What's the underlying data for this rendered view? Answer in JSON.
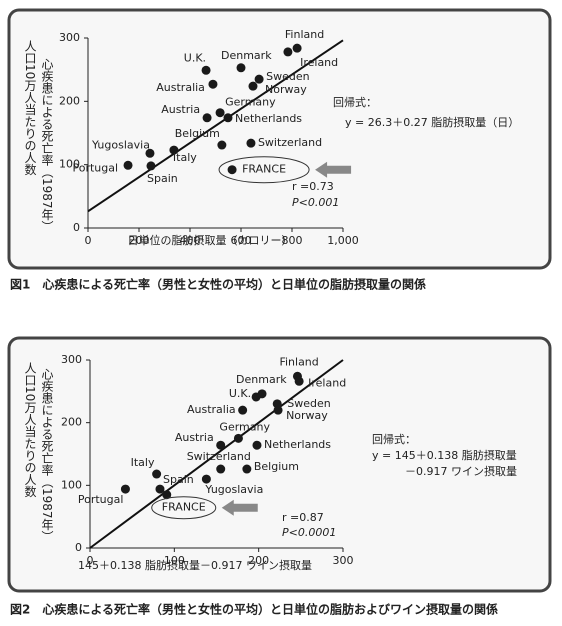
{
  "chart_data": [
    {
      "type": "scatter",
      "x": [
        784,
        820,
        600,
        463,
        490,
        671,
        647,
        518,
        467,
        549,
        525,
        639,
        243,
        337,
        157,
        247,
        565
      ],
      "values": [
        278,
        284,
        253,
        249,
        227,
        235,
        224,
        182,
        174,
        174,
        131,
        134,
        118,
        123,
        99,
        98,
        92
      ],
      "point_labels": [
        "Finland",
        "Ireland",
        "Denmark",
        "U.K.",
        "Australia",
        "Sweden",
        "Norway",
        "Germany",
        "Austria",
        "Netherlands",
        "Belgium",
        "Switzerland",
        "Yugoslavia",
        "Italy",
        "Portugal",
        "Spain",
        "FRANCE"
      ],
      "highlight_index": 16,
      "color": "#1a1a1a",
      "xlim": [
        0,
        1000
      ],
      "xticks": [
        0,
        200,
        400,
        600,
        800,
        {
          "value": 1000,
          "label": "1,000"
        }
      ],
      "ylim": [
        0,
        300
      ],
      "yticks": [
        0,
        100,
        200,
        300
      ],
      "regression": {
        "intercept": 26.3,
        "slope": 0.27
      },
      "x_label": "日単位の脂肪摂取量（カロリー）",
      "y_label": [
        "心疾患による死亡率（1987年）",
        "人口10万人当たりの人数"
      ],
      "equation": [
        "回帰式：",
        "y = 26.3＋0.27 脂肪摂取量（日）"
      ],
      "r": "r =0.73",
      "p": "P<0.001",
      "caption": "図1　心疾患による死亡率（男性と女性の平均）と日単位の脂肪摂取量の関係"
    },
    {
      "type": "scatter",
      "x": [
        246,
        248,
        204,
        197,
        181,
        222,
        223,
        176,
        155,
        198,
        186,
        155,
        138,
        79,
        42,
        83,
        91
      ],
      "values": [
        274,
        266,
        246,
        241,
        220,
        230,
        220,
        175,
        164,
        164,
        126,
        126,
        110,
        118,
        94,
        94,
        85
      ],
      "point_labels": [
        "Finland",
        "Ireland",
        "Denmark",
        "U.K.",
        "Australia",
        "Sweden",
        "Norway",
        "Germany",
        "Austria",
        "Netherlands",
        "Belgium",
        "Switzerland",
        "Yugoslavia",
        "Italy",
        "Portugal",
        "Spain",
        "FRANCE"
      ],
      "highlight_index": 16,
      "color": "#1a1a1a",
      "xlim": [
        0,
        300
      ],
      "xticks": [
        0,
        100,
        200,
        300
      ],
      "ylim": [
        0,
        300
      ],
      "yticks": [
        0,
        100,
        200,
        300
      ],
      "x_label": "145＋0.138 脂肪摂取量－0.917 ワイン摂取量",
      "y_label": [
        "心疾患による死亡率（1987年）",
        "人口10万人当たりの人数"
      ],
      "equation": [
        "回帰式：",
        "y = 145＋0.138 脂肪摂取量",
        "－0.917 ワイン摂取量"
      ],
      "r": "r =0.87",
      "p": "P<0.0001",
      "caption": "図2　心疾患による死亡率（男性と女性の平均）と日単位の脂肪およびワイン摂取量の関係"
    }
  ]
}
